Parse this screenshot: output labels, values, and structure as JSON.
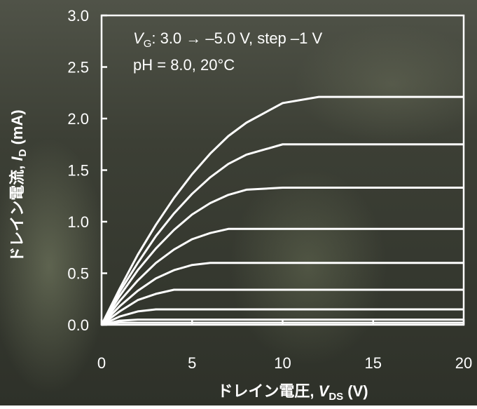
{
  "chart_data": {
    "type": "line",
    "xlabel": [
      "ドレイン電圧, ",
      "V",
      "DS",
      " (V)"
    ],
    "ylabel": [
      "ドレイン電流, ",
      "I",
      "D",
      " (mA)"
    ],
    "annotations": [
      [
        "V",
        "G",
        ": 3.0 → –5.0 V, step –1 V"
      ],
      [
        "pH = 8.0, 20°C"
      ]
    ],
    "x": [
      0,
      1,
      2,
      3,
      4,
      5,
      6,
      7,
      8,
      10,
      12,
      14,
      16,
      18,
      20
    ],
    "series": [
      {
        "color": "#ffffff",
        "values": [
          0,
          0.35,
          0.68,
          0.97,
          1.23,
          1.46,
          1.66,
          1.83,
          1.96,
          2.15,
          2.21,
          2.21,
          2.21,
          2.21,
          2.21
        ]
      },
      {
        "color": "#ffffff",
        "values": [
          0,
          0.32,
          0.6,
          0.86,
          1.08,
          1.27,
          1.43,
          1.56,
          1.65,
          1.75,
          1.75,
          1.75,
          1.75,
          1.75,
          1.75
        ]
      },
      {
        "color": "#ffffff",
        "values": [
          0,
          0.28,
          0.53,
          0.74,
          0.92,
          1.07,
          1.18,
          1.26,
          1.31,
          1.33,
          1.33,
          1.33,
          1.33,
          1.33,
          1.33
        ]
      },
      {
        "color": "#ffffff",
        "values": [
          0,
          0.23,
          0.43,
          0.6,
          0.73,
          0.83,
          0.89,
          0.93,
          0.93,
          0.93,
          0.93,
          0.93,
          0.93,
          0.93,
          0.93
        ]
      },
      {
        "color": "#ffffff",
        "values": [
          0,
          0.18,
          0.33,
          0.45,
          0.53,
          0.58,
          0.6,
          0.6,
          0.6,
          0.6,
          0.6,
          0.6,
          0.6,
          0.6,
          0.6
        ]
      },
      {
        "color": "#ffffff",
        "values": [
          0,
          0.13,
          0.24,
          0.3,
          0.34,
          0.34,
          0.34,
          0.34,
          0.34,
          0.34,
          0.34,
          0.34,
          0.34,
          0.34,
          0.34
        ]
      },
      {
        "color": "#ffffff",
        "values": [
          0,
          0.08,
          0.13,
          0.15,
          0.15,
          0.15,
          0.15,
          0.15,
          0.15,
          0.15,
          0.15,
          0.15,
          0.15,
          0.15,
          0.15
        ]
      },
      {
        "color": "#ffffff",
        "values": [
          0,
          0.04,
          0.05,
          0.05,
          0.05,
          0.05,
          0.05,
          0.05,
          0.05,
          0.05,
          0.05,
          0.05,
          0.05,
          0.05,
          0.05
        ]
      },
      {
        "color": "#ffffff",
        "values": [
          0,
          0.02,
          0.02,
          0.02,
          0.02,
          0.02,
          0.02,
          0.02,
          0.02,
          0.02,
          0.02,
          0.02,
          0.02,
          0.02,
          0.02
        ]
      }
    ],
    "xlim": [
      0,
      20
    ],
    "xticks": [
      0,
      5,
      10,
      15,
      20
    ],
    "ylim": [
      0,
      3
    ],
    "yticks": [
      {
        "value": 0,
        "label": "0.0"
      },
      {
        "value": 0.5,
        "label": "0.5"
      },
      {
        "value": 1,
        "label": "1.0"
      },
      {
        "value": 1.5,
        "label": "1.5"
      },
      {
        "value": 2,
        "label": "2.0"
      },
      {
        "value": 2.5,
        "label": "2.5"
      },
      {
        "value": 3,
        "label": "3.0"
      }
    ],
    "grid": false
  }
}
